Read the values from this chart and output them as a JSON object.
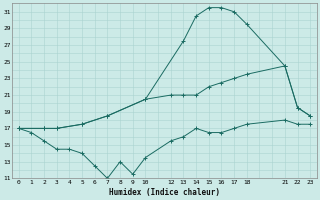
{
  "title": "",
  "xlabel": "Humidex (Indice chaleur)",
  "ylabel": "",
  "background_color": "#cceae7",
  "grid_color": "#aad4d0",
  "line_color": "#1a6b62",
  "ylim": [
    11,
    32
  ],
  "xlim": [
    -0.5,
    23.5
  ],
  "yticks": [
    11,
    13,
    15,
    17,
    19,
    21,
    23,
    25,
    27,
    29,
    31
  ],
  "xticks": [
    0,
    1,
    2,
    3,
    4,
    5,
    6,
    7,
    8,
    9,
    10,
    12,
    13,
    14,
    15,
    16,
    17,
    18,
    21,
    22,
    23
  ],
  "xtick_labels": [
    "0",
    "1",
    "2",
    "3",
    "4",
    "5",
    "6",
    "7",
    "8",
    "9",
    "10",
    "12",
    "13",
    "14",
    "15",
    "16",
    "17",
    "18",
    "21",
    "22",
    "23"
  ],
  "line1_x": [
    0,
    1,
    2,
    3,
    4,
    5,
    6,
    7,
    8,
    9,
    10,
    12,
    13,
    14,
    15,
    16,
    17,
    18,
    21,
    22,
    23
  ],
  "line1_y": [
    17,
    16.5,
    15.5,
    14.5,
    14.5,
    14,
    12.5,
    11,
    13,
    11.5,
    13.5,
    15.5,
    16,
    17,
    16.5,
    16.5,
    17,
    17.5,
    18,
    17.5,
    17.5
  ],
  "line2_x": [
    0,
    2,
    3,
    5,
    7,
    10,
    13,
    14,
    15,
    16,
    17,
    18,
    21,
    22,
    23
  ],
  "line2_y": [
    17,
    17,
    17,
    17.5,
    18.5,
    20.5,
    27.5,
    30.5,
    31.5,
    31.5,
    31,
    29.5,
    24.5,
    19.5,
    18.5
  ],
  "line3_x": [
    0,
    2,
    3,
    5,
    7,
    10,
    12,
    13,
    14,
    15,
    16,
    17,
    18,
    21,
    22,
    23
  ],
  "line3_y": [
    17,
    17,
    17,
    17.5,
    18.5,
    20.5,
    21,
    21,
    21,
    22,
    22.5,
    23,
    23.5,
    24.5,
    19.5,
    18.5
  ]
}
